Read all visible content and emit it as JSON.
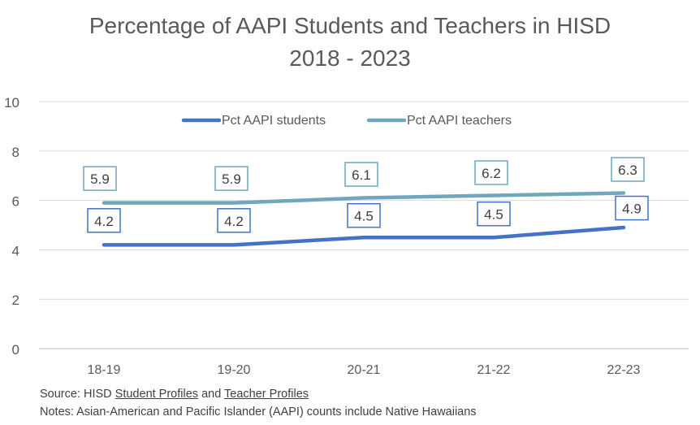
{
  "chart_data": {
    "type": "line",
    "title": "Percentage of AAPI Students and Teachers in HISD",
    "subtitle": "2018 - 2023",
    "categories": [
      "18-19",
      "19-20",
      "20-21",
      "21-22",
      "22-23"
    ],
    "ylim": [
      0,
      10
    ],
    "yticks": [
      0,
      2,
      4,
      6,
      8,
      10
    ],
    "grid": true,
    "legend_position": "top",
    "series": [
      {
        "name": "Pct AAPI students",
        "values": [
          4.2,
          4.2,
          4.5,
          4.5,
          4.9
        ],
        "color": "#4472C4"
      },
      {
        "name": "Pct AAPI teachers",
        "values": [
          5.9,
          5.9,
          6.1,
          6.2,
          6.3
        ],
        "color": "#6FA8BC"
      }
    ]
  },
  "footer": {
    "source_prefix": "Source: HISD ",
    "source_link1": "Student Profiles",
    "source_mid": " and ",
    "source_link2": "Teacher Profiles",
    "notes": "Notes: Asian-American and Pacific Islander (AAPI) counts include Native Hawaiians"
  }
}
